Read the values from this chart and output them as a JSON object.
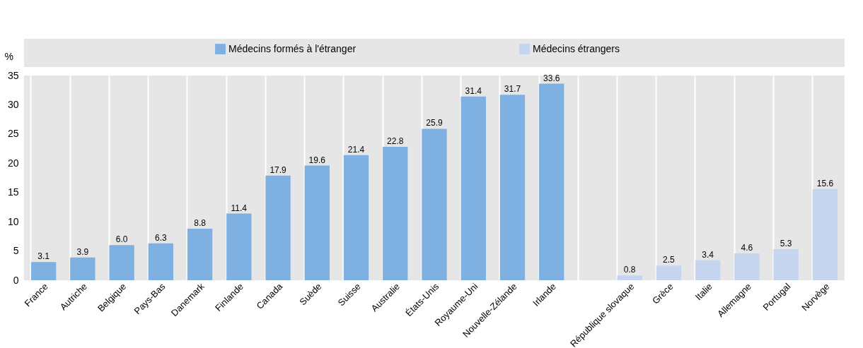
{
  "chart_data": {
    "type": "bar",
    "ylabel": "%",
    "categories": [
      "France",
      "Autriche",
      "Belgique",
      "Pays-Bas",
      "Danemark",
      "Finlande",
      "Canada",
      "Suède",
      "Suisse",
      "Australie",
      "États-Unis",
      "Royaume-Uni",
      "Nouvelle-Zélande",
      "Irlande",
      null,
      "République slovaque",
      "Grèce",
      "Italie",
      "Allemagne",
      "Portugal",
      "Norvège"
    ],
    "series": [
      {
        "name": "Médecins formés à l'étranger",
        "color": "#7eb1e1",
        "values": [
          3.1,
          3.9,
          6.0,
          6.3,
          8.8,
          11.4,
          17.9,
          19.6,
          21.4,
          22.8,
          25.9,
          31.4,
          31.7,
          33.6,
          null,
          null,
          null,
          null,
          null,
          null,
          null
        ],
        "value_labels": [
          "3.1",
          "3.9",
          "6.0",
          "6.3",
          "8.8",
          "11.4",
          "17.9",
          "19.6",
          "21.4",
          "22.8",
          "25.9",
          "31.4",
          "31.7",
          "33.6",
          null,
          null,
          null,
          null,
          null,
          null,
          null
        ]
      },
      {
        "name": "Médecins étrangers",
        "color": "#c5d5ef",
        "values": [
          null,
          null,
          null,
          null,
          null,
          null,
          null,
          null,
          null,
          null,
          null,
          null,
          null,
          null,
          null,
          0.8,
          2.5,
          3.4,
          4.6,
          5.3,
          15.6
        ],
        "value_labels": [
          null,
          null,
          null,
          null,
          null,
          null,
          null,
          null,
          null,
          null,
          null,
          null,
          null,
          null,
          null,
          "0.8",
          "2.5",
          "3.4",
          "4.6",
          "5.3",
          "15.6"
        ]
      }
    ],
    "ylim": [
      0,
      35
    ],
    "yticks": [
      0,
      5,
      10,
      15,
      20,
      25,
      30,
      35
    ],
    "grid": "x",
    "legend": "top"
  }
}
